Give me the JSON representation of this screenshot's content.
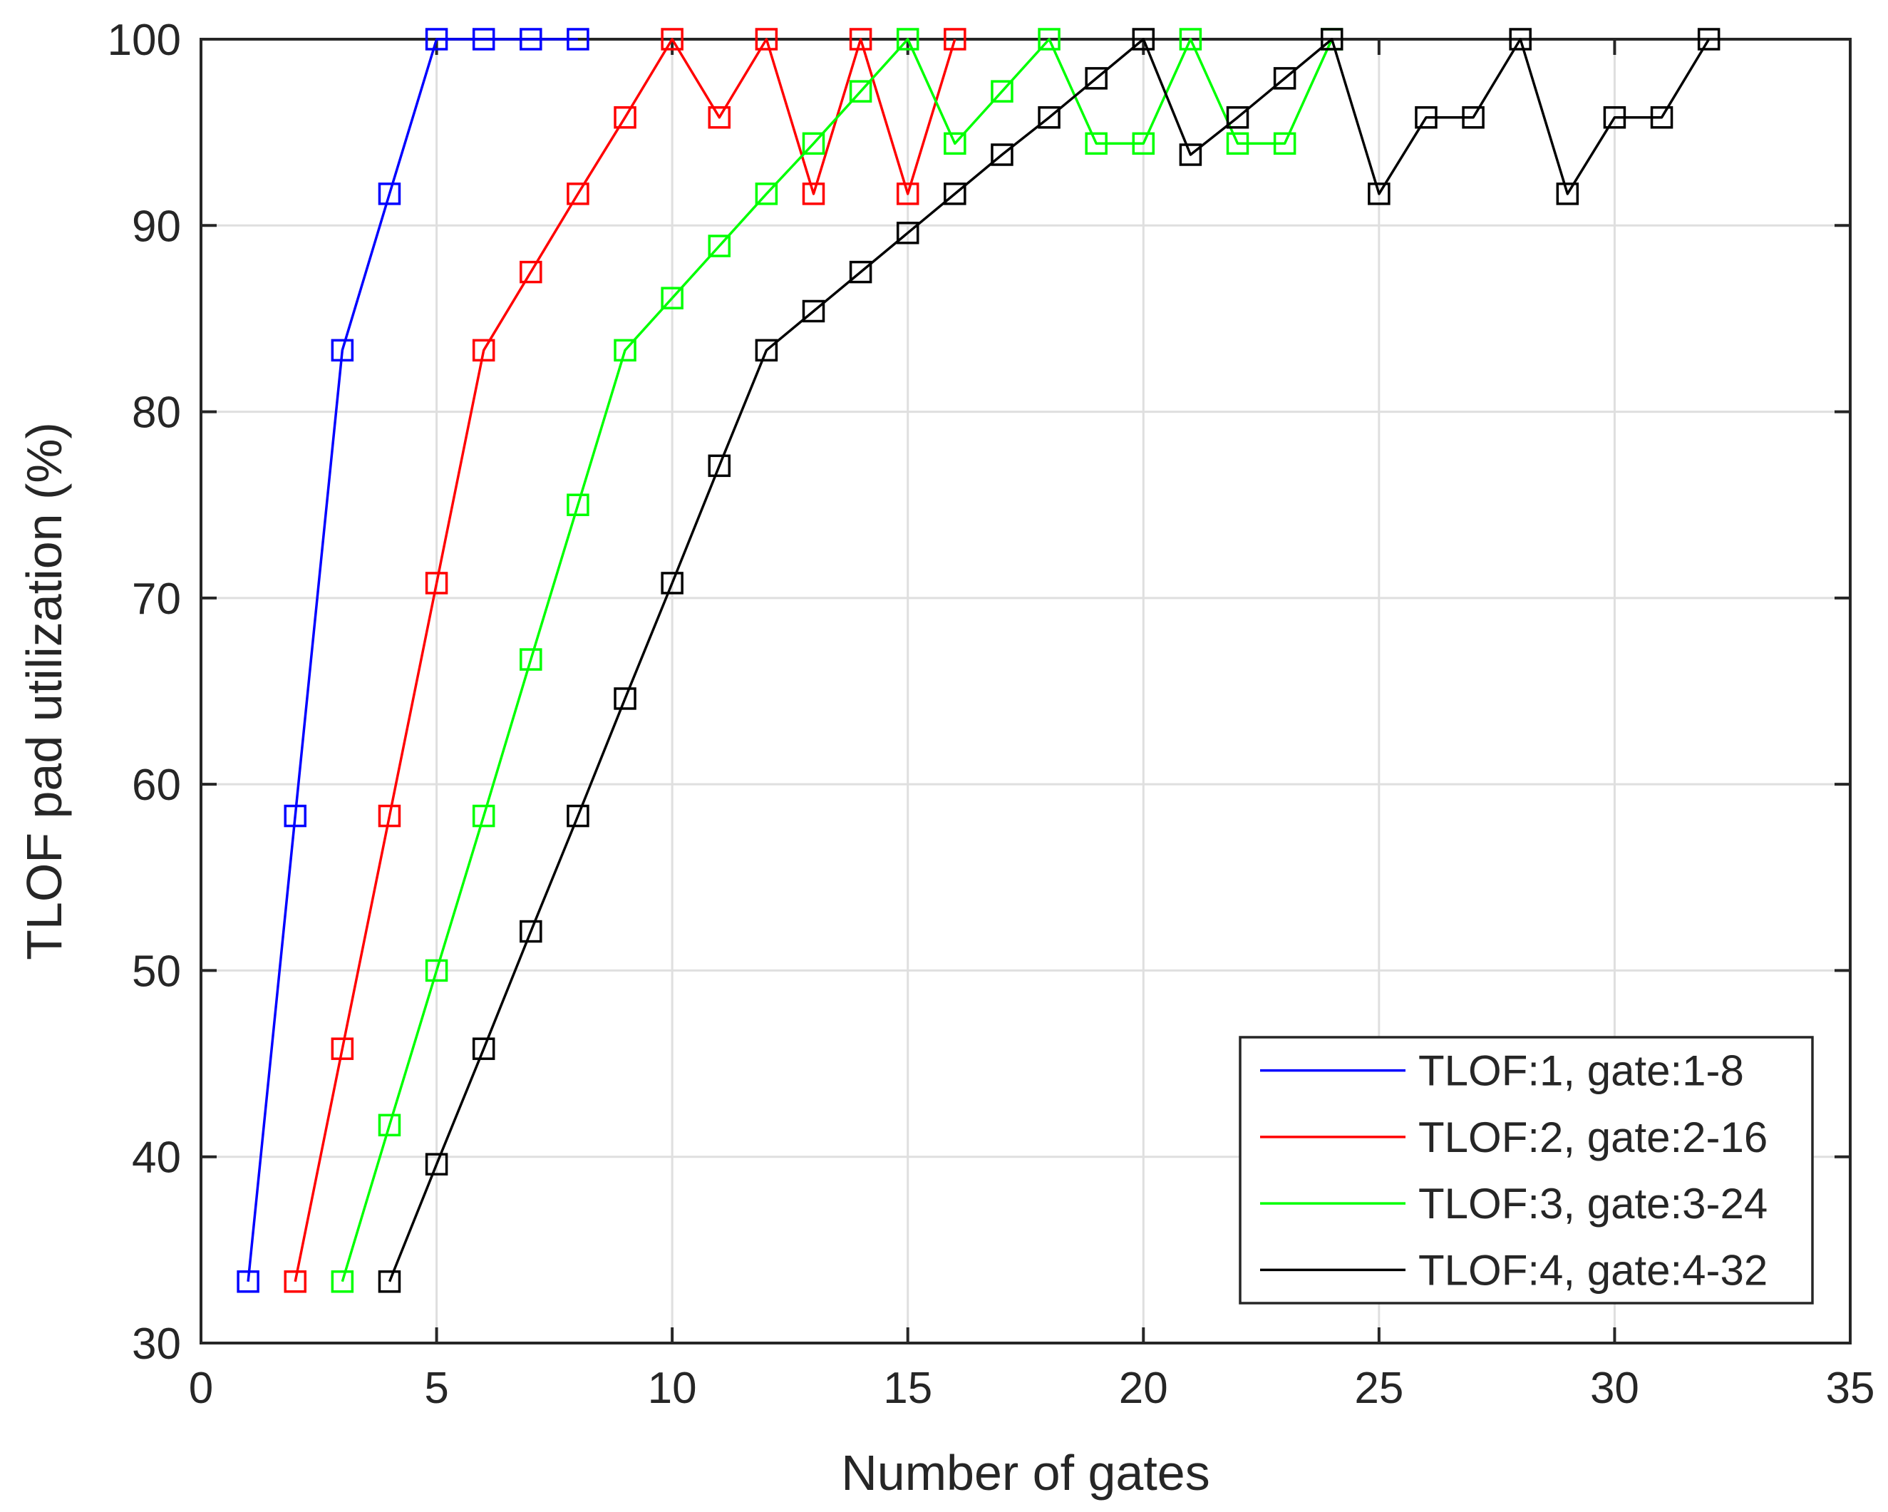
{
  "chart_data": {
    "type": "line",
    "title": "",
    "xlabel": "Number of gates",
    "ylabel": "TLOF pad utilization (%)",
    "xlim": [
      0,
      35
    ],
    "ylim": [
      30,
      100
    ],
    "xticks": [
      0,
      5,
      10,
      15,
      20,
      25,
      30,
      35
    ],
    "yticks": [
      30,
      40,
      50,
      60,
      70,
      80,
      90,
      100
    ],
    "grid": true,
    "legend_position": "bottom-right",
    "marker": "square",
    "series": [
      {
        "name": "TLOF:1, gate:1-8",
        "color": "#0000ff",
        "x": [
          1,
          2,
          3,
          4,
          5,
          6,
          7,
          8
        ],
        "y": [
          33.3,
          58.3,
          83.3,
          91.7,
          100,
          100,
          100,
          100
        ]
      },
      {
        "name": "TLOF:2, gate:2-16",
        "color": "#ff0000",
        "x": [
          2,
          3,
          4,
          5,
          6,
          7,
          8,
          9,
          10,
          11,
          12,
          13,
          14,
          15,
          16
        ],
        "y": [
          33.3,
          45.8,
          58.3,
          70.8,
          83.3,
          87.5,
          91.7,
          95.8,
          100,
          95.8,
          100,
          91.7,
          100,
          91.7,
          100
        ]
      },
      {
        "name": "TLOF:3, gate:3-24",
        "color": "#00ff00",
        "x": [
          3,
          4,
          5,
          6,
          7,
          8,
          9,
          10,
          11,
          12,
          13,
          14,
          15,
          16,
          17,
          18,
          19,
          20,
          21,
          22,
          23,
          24
        ],
        "y": [
          33.3,
          41.7,
          50,
          58.3,
          66.7,
          75,
          83.3,
          86.1,
          88.9,
          91.7,
          94.4,
          97.2,
          100,
          94.4,
          97.2,
          100,
          94.4,
          94.4,
          100,
          94.4,
          94.4,
          100
        ]
      },
      {
        "name": "TLOF:4, gate:4-32",
        "color": "#000000",
        "x": [
          4,
          5,
          6,
          7,
          8,
          9,
          10,
          11,
          12,
          13,
          14,
          15,
          16,
          17,
          18,
          19,
          20,
          21,
          22,
          23,
          24,
          25,
          26,
          27,
          28,
          29,
          30,
          31,
          32
        ],
        "y": [
          33.3,
          39.6,
          45.8,
          52.1,
          58.3,
          64.6,
          70.8,
          77.1,
          83.3,
          85.4,
          87.5,
          89.6,
          91.7,
          93.8,
          95.8,
          97.9,
          100,
          93.8,
          95.8,
          97.9,
          100,
          91.7,
          95.8,
          95.8,
          100,
          91.7,
          95.8,
          95.8,
          100
        ]
      }
    ]
  }
}
